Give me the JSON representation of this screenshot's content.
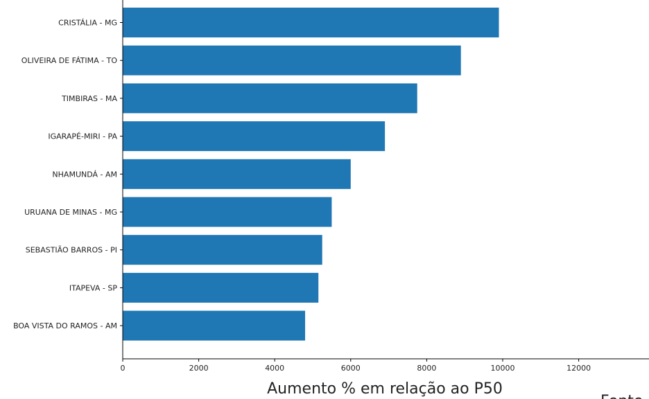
{
  "chart_data": {
    "type": "bar",
    "orientation": "horizontal",
    "categories": [
      "CRISTÁLIA - MG",
      "OLIVEIRA DE FÁTIMA - TO",
      "TIMBIRAS - MA",
      "IGARAPÉ-MIRI - PA",
      "NHAMUNDÁ - AM",
      "URUANA DE MINAS - MG",
      "SEBASTIÃO BARROS - PI",
      "ITAPEVA - SP",
      "BOA VISTA DO RAMOS - AM"
    ],
    "values": [
      9900,
      8900,
      7750,
      6900,
      6000,
      5500,
      5250,
      5150,
      4800
    ],
    "xlabel": "Aumento % em relação ao P50",
    "xlim": [
      0,
      13800
    ],
    "xticks": [
      0,
      2000,
      4000,
      6000,
      8000,
      10000,
      12000
    ],
    "bar_color": "#1f77b4",
    "grid": false,
    "source_note": "Fonte"
  }
}
